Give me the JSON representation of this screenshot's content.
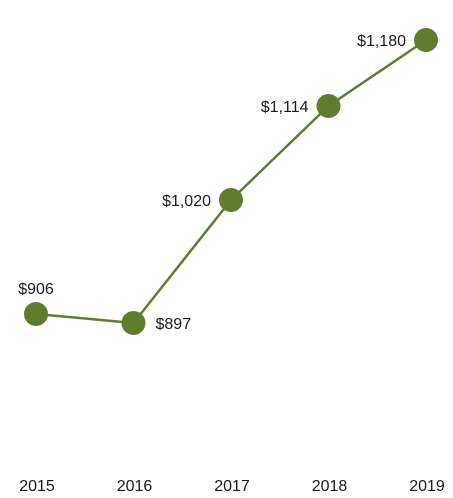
{
  "chart_data": {
    "type": "line",
    "categories": [
      "2015",
      "2016",
      "2017",
      "2018",
      "2019"
    ],
    "series": [
      {
        "values": [
          906,
          897,
          1020,
          1114,
          1180
        ],
        "value_labels": [
          "$906",
          "$897",
          "$1,020",
          "$1,114",
          "$1,180"
        ],
        "color": "#5e7e2d"
      }
    ],
    "title": "",
    "xlabel": "",
    "ylabel": "",
    "ylim": [
      800,
      1200
    ],
    "grid": false,
    "legend": "none"
  }
}
